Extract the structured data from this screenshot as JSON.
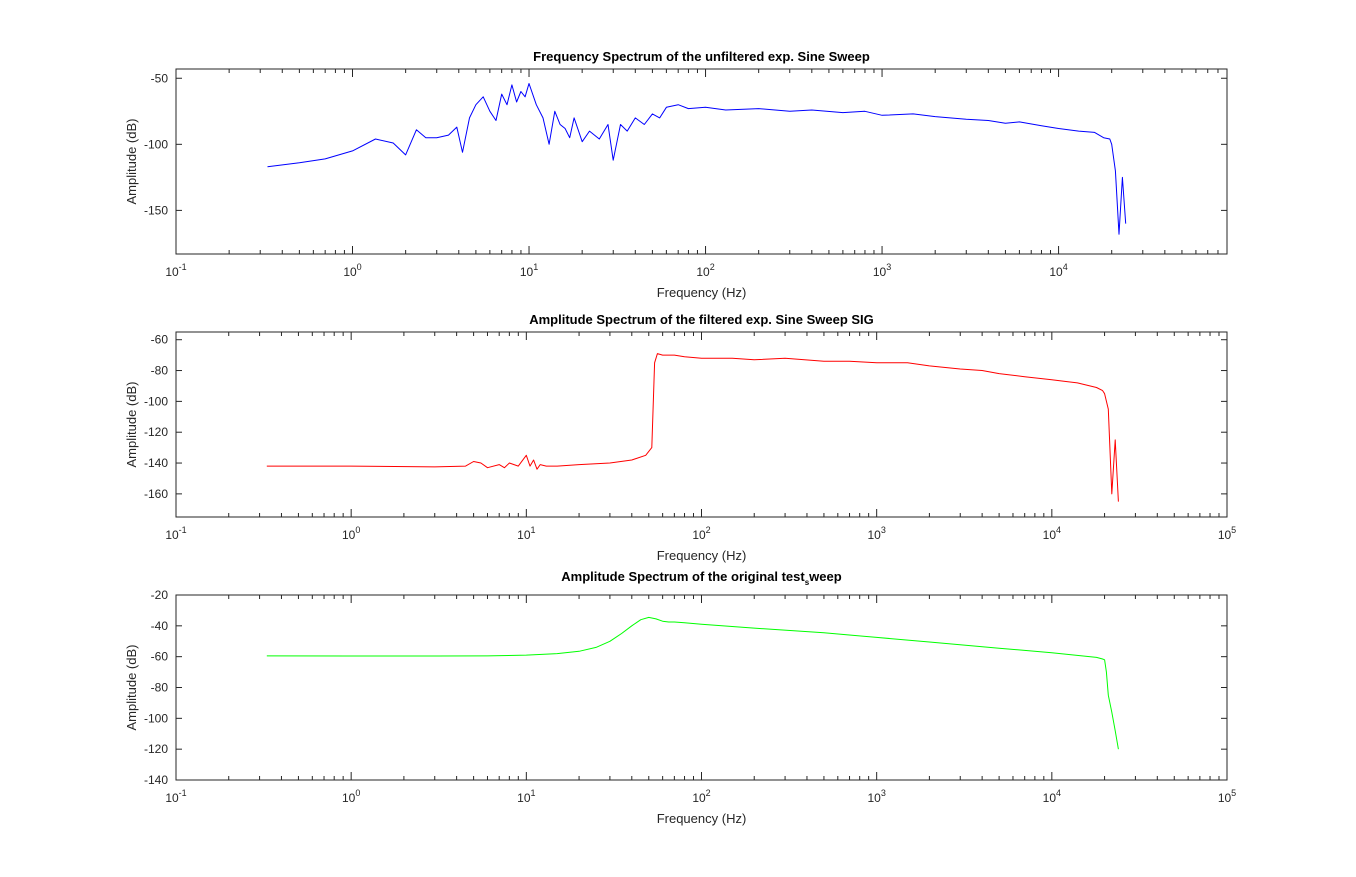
{
  "chart_data": [
    {
      "type": "line",
      "title": "Frequency Spectrum of the unfiltered exp. Sine Sweep",
      "title_sub": "",
      "title_after": "",
      "xlabel": "Frequency (Hz)",
      "ylabel": "Amplitude (dB)",
      "xscale": "log",
      "xlim": [
        0.1,
        90000
      ],
      "ylim": [
        -183,
        -43
      ],
      "x_ticks": [
        0.1,
        1,
        10,
        100,
        1000,
        10000
      ],
      "x_tick_labels": [
        [
          "10",
          "-1"
        ],
        [
          "10",
          "0"
        ],
        [
          "10",
          "1"
        ],
        [
          "10",
          "2"
        ],
        [
          "10",
          "3"
        ],
        [
          "10",
          "4"
        ]
      ],
      "y_ticks": [
        -50,
        -100,
        -150
      ],
      "y_tick_labels": [
        "-50",
        "-100",
        "-150"
      ],
      "grid": false,
      "color": "#0000ff",
      "series": [
        {
          "x": [
            0.33,
            0.5,
            0.7,
            1.0,
            1.35,
            1.7,
            2.0,
            2.3,
            2.6,
            3.0,
            3.5,
            3.9,
            4.2,
            4.6,
            5.0,
            5.5,
            6.0,
            6.5,
            7.0,
            7.5,
            8.0,
            8.5,
            9.0,
            9.5,
            10,
            11,
            12,
            13,
            14,
            15,
            16,
            17,
            18,
            20,
            22,
            25,
            28,
            30,
            33,
            36,
            40,
            45,
            50,
            55,
            60,
            70,
            80,
            100,
            130,
            200,
            300,
            400,
            600,
            800,
            1000,
            1500,
            2000,
            3000,
            4000,
            5000,
            6000,
            8000,
            10000,
            13000,
            16000,
            18000,
            19500,
            20000,
            21000,
            22000,
            23000,
            24000
          ],
          "y": [
            -117,
            -114,
            -111,
            -105,
            -96,
            -99,
            -108,
            -89,
            -95,
            -95,
            -93,
            -87,
            -106,
            -80,
            -70,
            -64,
            -75,
            -82,
            -62,
            -70,
            -55,
            -68,
            -60,
            -64,
            -54,
            -70,
            -80,
            -100,
            -75,
            -85,
            -88,
            -95,
            -80,
            -98,
            -90,
            -96,
            -85,
            -112,
            -85,
            -90,
            -80,
            -85,
            -77,
            -80,
            -72,
            -70,
            -73,
            -72,
            -74,
            -73,
            -75,
            -74,
            -76,
            -75,
            -78,
            -77,
            -79,
            -81,
            -82,
            -84,
            -83,
            -86,
            -88,
            -90,
            -91,
            -95,
            -96,
            -100,
            -120,
            -168,
            -125,
            -160
          ]
        }
      ]
    },
    {
      "type": "line",
      "title": "Amplitude Spectrum of the filtered exp. Sine Sweep SIG",
      "title_sub": "",
      "title_after": "",
      "xlabel": "Frequency (Hz)",
      "ylabel": "Amplitude (dB)",
      "xscale": "log",
      "xlim": [
        0.1,
        100000
      ],
      "ylim": [
        -175,
        -55
      ],
      "x_ticks": [
        0.1,
        1,
        10,
        100,
        1000,
        10000,
        100000
      ],
      "x_tick_labels": [
        [
          "10",
          "-1"
        ],
        [
          "10",
          "0"
        ],
        [
          "10",
          "1"
        ],
        [
          "10",
          "2"
        ],
        [
          "10",
          "3"
        ],
        [
          "10",
          "4"
        ],
        [
          "10",
          "5"
        ]
      ],
      "y_ticks": [
        -60,
        -80,
        -100,
        -120,
        -140,
        -160
      ],
      "y_tick_labels": [
        "-60",
        "-80",
        "-100",
        "-120",
        "-140",
        "-160"
      ],
      "grid": false,
      "color": "#ff0000",
      "series": [
        {
          "x": [
            0.33,
            1,
            3,
            4.5,
            5,
            5.5,
            6,
            7,
            7.5,
            8,
            9,
            10,
            10.5,
            11,
            11.5,
            12,
            13,
            15,
            20,
            30,
            40,
            48,
            52,
            54,
            56,
            60,
            70,
            80,
            100,
            150,
            200,
            300,
            500,
            700,
            1000,
            1500,
            2000,
            3000,
            4000,
            5000,
            7000,
            10000,
            14000,
            18000,
            19500,
            20000,
            21000,
            22000,
            23000,
            24000
          ],
          "y": [
            -142,
            -142,
            -142.5,
            -142,
            -139,
            -140,
            -143,
            -141,
            -143,
            -140,
            -142,
            -135,
            -142,
            -138,
            -144,
            -141,
            -142,
            -142,
            -141,
            -140,
            -138,
            -135,
            -130,
            -75,
            -69,
            -70,
            -70,
            -71,
            -72,
            -72,
            -73,
            -72,
            -74,
            -74,
            -75,
            -75,
            -77,
            -79,
            -80,
            -82,
            -84,
            -86,
            -88,
            -91,
            -93,
            -95,
            -105,
            -160,
            -125,
            -165
          ]
        }
      ]
    },
    {
      "type": "line",
      "title": "Amplitude Spectrum of the original test",
      "title_sub": "s",
      "title_after": "weep",
      "xlabel": "Frequency (Hz)",
      "ylabel": "Amplitude (dB)",
      "xscale": "log",
      "xlim": [
        0.1,
        100000
      ],
      "ylim": [
        -140,
        -20
      ],
      "x_ticks": [
        0.1,
        1,
        10,
        100,
        1000,
        10000,
        100000
      ],
      "x_tick_labels": [
        [
          "10",
          "-1"
        ],
        [
          "10",
          "0"
        ],
        [
          "10",
          "1"
        ],
        [
          "10",
          "2"
        ],
        [
          "10",
          "3"
        ],
        [
          "10",
          "4"
        ],
        [
          "10",
          "5"
        ]
      ],
      "y_ticks": [
        -20,
        -40,
        -60,
        -80,
        -100,
        -120,
        -140
      ],
      "y_tick_labels": [
        "-20",
        "-40",
        "-60",
        "-80",
        "-100",
        "-120",
        "-140"
      ],
      "grid": false,
      "color": "#00ff00",
      "series": [
        {
          "x": [
            0.33,
            1,
            3,
            6,
            10,
            15,
            20,
            25,
            30,
            35,
            40,
            45,
            50,
            55,
            60,
            65,
            70,
            80,
            100,
            200,
            500,
            1000,
            2000,
            5000,
            10000,
            18000,
            19500,
            20000,
            20500,
            21000,
            22000,
            23000,
            24000
          ],
          "y": [
            -59.5,
            -59.6,
            -59.6,
            -59.5,
            -59,
            -58,
            -56.5,
            -54,
            -50,
            -45,
            -40,
            -36,
            -34.5,
            -35.5,
            -37,
            -37.5,
            -37.5,
            -38,
            -39,
            -41.5,
            -44.5,
            -47.5,
            -50.5,
            -54.5,
            -57.5,
            -60.5,
            -61.5,
            -62,
            -70,
            -85,
            -96,
            -108,
            -120
          ]
        }
      ]
    }
  ]
}
